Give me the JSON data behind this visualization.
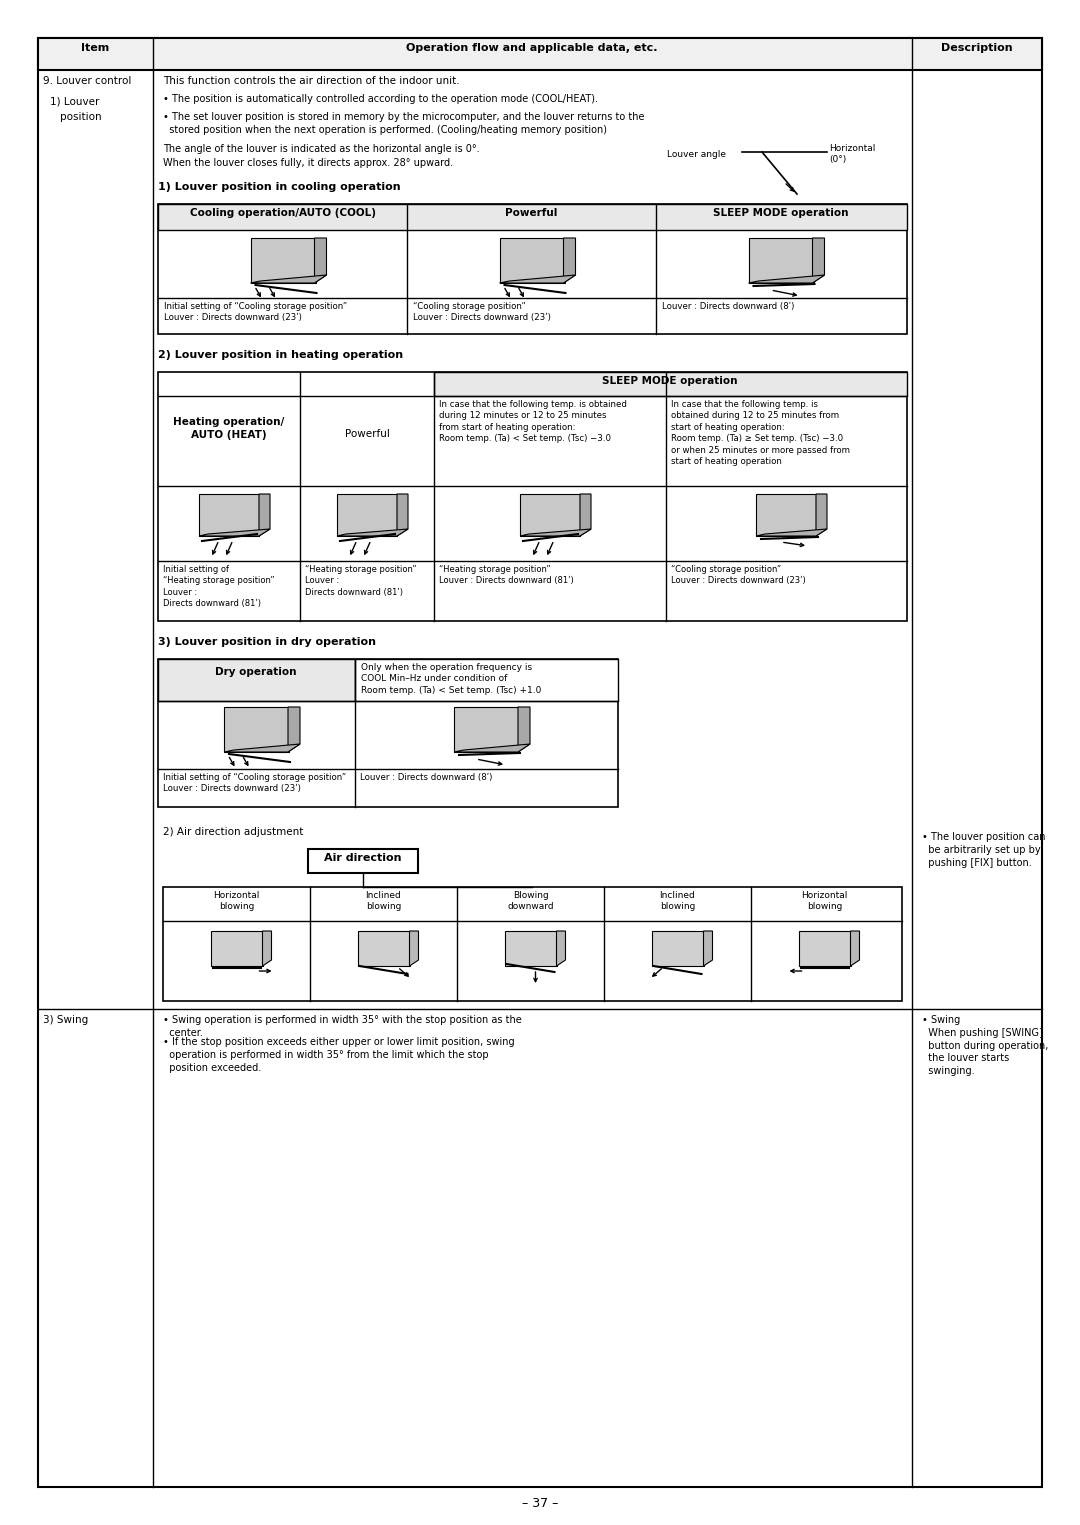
{
  "bg_color": "#ffffff",
  "header_row": [
    "Item",
    "Operation flow and applicable data, etc.",
    "Description"
  ],
  "col1_label": "9. Louver control",
  "intro_text1": "This function controls the air direction of the indoor unit.",
  "bullet1": "• The position is automatically controlled according to the operation mode (COOL/HEAT).",
  "bullet2": "• The set louver position is stored in memory by the microcomputer, and the louver returns to the\n  stored position when the next operation is performed. (Cooling/heating memory position)",
  "angle_text1": "The angle of the louver is indicated as the horizontal angle is 0°.",
  "angle_text2": "When the louver closes fully, it directs approx. 28° upward.",
  "louver_angle_label": "Louver angle",
  "horizontal_label": "Horizontal\n(0°)",
  "section1_label": "1) Louver position in cooling operation",
  "cooling_headers": [
    "Cooling operation/AUTO (COOL)",
    "Powerful",
    "SLEEP MODE operation"
  ],
  "cooling_captions": [
    "Initial setting of “Cooling storage position”\nLouver : Directs downward (23ʹ)",
    "“Cooling storage position”\nLouver : Directs downward (23ʹ)",
    "Louver : Directs downward (8ʹ)"
  ],
  "section2_label": "2) Louver position in heating operation",
  "sleep_mode_label": "SLEEP MODE operation",
  "heat_sleep1_text": "In case that the following temp. is obtained\nduring 12 minutes or 12 to 25 minutes\nfrom start of heating operation:\nRoom temp. (Ta) < Set temp. (Tsc) −3.0",
  "heat_sleep2_text": "In case that the following temp. is\nobtained during 12 to 25 minutes from\nstart of heating operation:\nRoom temp. (Ta) ≥ Set temp. (Tsc) −3.0\nor when 25 minutes or more passed from\nstart of heating operation",
  "heating_captions": [
    "Initial setting of\n“Heating storage position”\nLouver :\nDirects downward (81ʹ)",
    "“Heating storage position”\nLouver :\nDirects downward (81ʹ)",
    "“Heating storage position”\nLouver : Directs downward (81ʹ)",
    "“Cooling storage position”\nLouver : Directs downward (23ʹ)"
  ],
  "section3_label": "3) Louver position in dry operation",
  "dry_header2": "Only when the operation frequency is\nCOOL Min–Hz under condition of\nRoom temp. (Ta) < Set temp. (Tsc) +1.0",
  "dry_captions": [
    "Initial setting of “Cooling storage position”\nLouver : Directs downward (23ʹ)",
    "Louver : Directs downward (8ʹ)"
  ],
  "air_dir_label": "2) Air direction adjustment",
  "air_dir_box": "Air direction",
  "air_dir_cols": [
    "Horizontal\nblowing",
    "Inclined\nblowing",
    "Blowing\ndownward",
    "Inclined\nblowing",
    "Horizontal\nblowing"
  ],
  "desc_air": "• The louver position can\n  be arbitrarily set up by\n  pushing [FIX] button.",
  "swing_label": "3) Swing",
  "swing_bullet1": "• Swing operation is performed in width 35° with the stop position as the\n  center.",
  "swing_bullet2": "• If the stop position exceeds either upper or lower limit position, swing\n  operation is performed in width 35° from the limit which the stop\n  position exceeded.",
  "desc_swing": "• Swing\n  When pushing [SWING]\n  button during operation,\n  the louver starts\n  swinging.",
  "page_num": "– 37 –"
}
